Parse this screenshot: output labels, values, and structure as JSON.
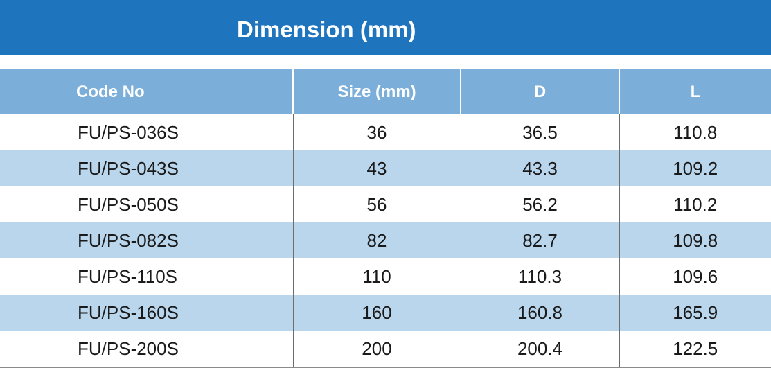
{
  "title": "Dimension (mm)",
  "columns": [
    "Code No",
    "Size (mm)",
    "D",
    "L"
  ],
  "rows": [
    [
      "FU/PS-036S",
      "36",
      "36.5",
      "110.8"
    ],
    [
      "FU/PS-043S",
      "43",
      "43.3",
      "109.2"
    ],
    [
      "FU/PS-050S",
      "56",
      "56.2",
      "110.2"
    ],
    [
      "FU/PS-082S",
      "82",
      "82.7",
      "109.8"
    ],
    [
      "FU/PS-110S",
      "110",
      "110.3",
      "109.6"
    ],
    [
      "FU/PS-160S",
      "160",
      "160.8",
      "165.9"
    ],
    [
      "FU/PS-200S",
      "200",
      "200.4",
      "122.5"
    ]
  ],
  "colors": {
    "title_bar": "#1e74bd",
    "header": "#7bafda",
    "row_shade": "#bad6ec"
  }
}
